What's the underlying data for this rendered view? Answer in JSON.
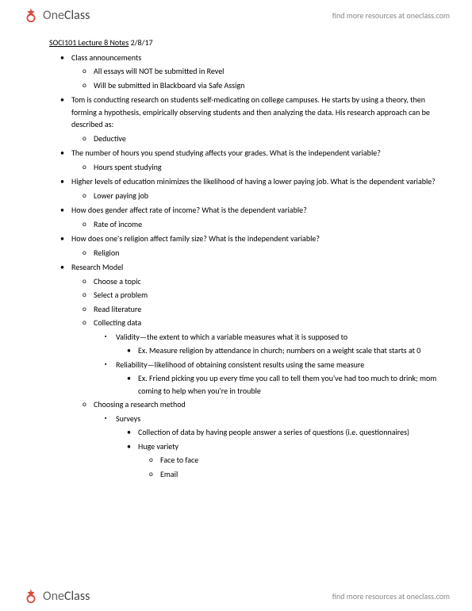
{
  "brand": {
    "name_light": "One",
    "name_bold": "Class",
    "tagline": "find more resources at oneclass.com"
  },
  "title": "SOCI101 Lecture 8 Notes",
  "date": "2/8/17",
  "colors": {
    "text": "#000000",
    "bg": "#ffffff",
    "logo_red": "#d94b3f",
    "tag": "#888888",
    "logo_text": "#666666"
  },
  "font": {
    "family": "Calibri",
    "body_size_pt": 10,
    "title_underline": true
  },
  "items": [
    {
      "t": "Class announcements",
      "c": [
        {
          "t": "All essays will NOT be submitted in Revel"
        },
        {
          "t": "Will be submitted in Blackboard via Safe Assign"
        }
      ]
    },
    {
      "t": "Tom is conducting research on students self-medicating on college campuses. He starts by using a theory, then forming a hypothesis, empirically observing students and then analyzing the data. His research approach can be described as:",
      "c": [
        {
          "t": "Deductive"
        }
      ]
    },
    {
      "t": "The number of hours you spend studying affects your grades. What is the independent variable?",
      "c": [
        {
          "t": "Hours spent studying"
        }
      ]
    },
    {
      "t": "Higher levels of education minimizes the likelihood of having a lower paying job. What is the dependent variable?",
      "c": [
        {
          "t": "Lower paying job"
        }
      ]
    },
    {
      "t": "How does gender affect rate of income? What is the dependent variable?",
      "c": [
        {
          "t": "Rate of income"
        }
      ]
    },
    {
      "t": "How does one's religion affect family size? What is the independent variable?",
      "c": [
        {
          "t": "Religion"
        }
      ]
    },
    {
      "t": "Research Model",
      "c": [
        {
          "t": "Choose a topic"
        },
        {
          "t": "Select a problem"
        },
        {
          "t": "Read literature"
        },
        {
          "t": "Collecting data",
          "c": [
            {
              "t": "Validity—the extent to which a variable measures what it is supposed to",
              "c": [
                {
                  "t": "Ex. Measure religion by attendance in church; numbers on a weight scale that starts at 0"
                }
              ]
            },
            {
              "t": "Reliability—likelihood of obtaining consistent results using the same measure",
              "c": [
                {
                  "t": "Ex. Friend picking you up every time you call to tell them you've had too much to drink; mom coming to help when you're in trouble"
                }
              ]
            }
          ]
        },
        {
          "t": "Choosing a research method",
          "c": [
            {
              "t": "Surveys",
              "c": [
                {
                  "t": "Collection of data by having people answer a series of questions (i.e. questionnaires)"
                },
                {
                  "t": "Huge variety",
                  "c": [
                    {
                      "t": "Face to face"
                    },
                    {
                      "t": "Email"
                    }
                  ]
                }
              ]
            }
          ]
        }
      ]
    }
  ]
}
